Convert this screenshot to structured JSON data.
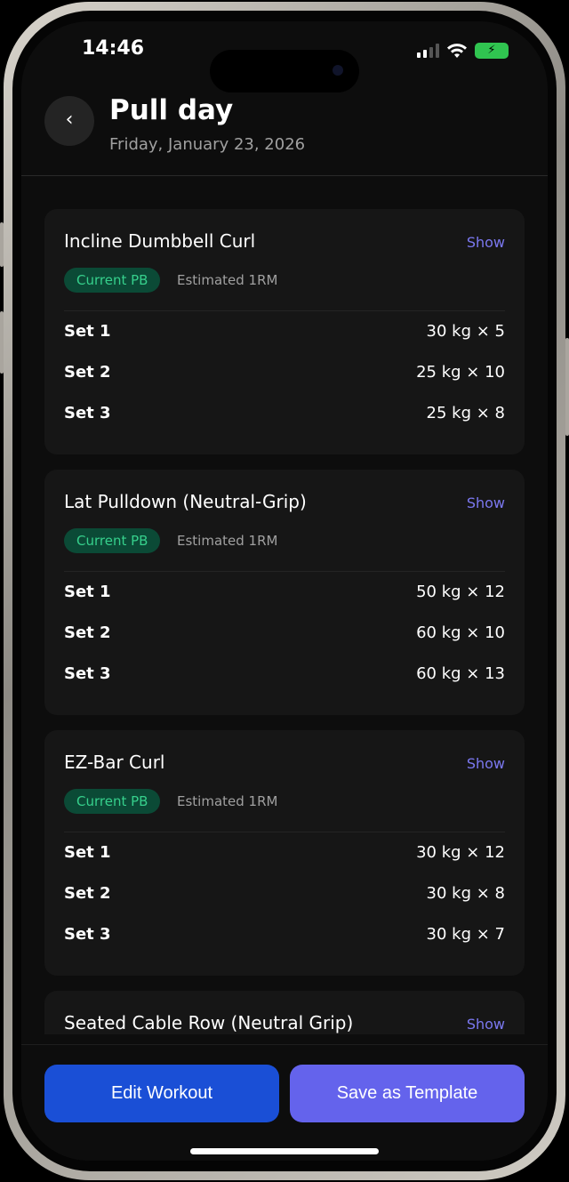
{
  "status_bar": {
    "time": "14:46",
    "signal_icon": "cellular-signal-icon",
    "wifi_icon": "wifi-icon",
    "battery_icon": "battery-charging-icon",
    "battery_color": "#30c450"
  },
  "header": {
    "back_icon": "chevron-left-icon",
    "back_glyph": "‹",
    "title": "Pull day",
    "date": "Friday, January 23, 2026"
  },
  "exercises": [
    {
      "name": "Incline Dumbbell Curl",
      "show_label": "Show",
      "badge": "Current PB",
      "badge_note": "Estimated 1RM",
      "sets": [
        {
          "label": "Set 1",
          "value": "30 kg × 5"
        },
        {
          "label": "Set 2",
          "value": "25 kg × 10"
        },
        {
          "label": "Set 3",
          "value": "25 kg × 8"
        }
      ]
    },
    {
      "name": "Lat Pulldown (Neutral-Grip)",
      "show_label": "Show",
      "badge": "Current PB",
      "badge_note": "Estimated 1RM",
      "sets": [
        {
          "label": "Set 1",
          "value": "50 kg × 12"
        },
        {
          "label": "Set 2",
          "value": "60 kg × 10"
        },
        {
          "label": "Set 3",
          "value": "60 kg × 13"
        }
      ]
    },
    {
      "name": "EZ-Bar Curl",
      "show_label": "Show",
      "badge": "Current PB",
      "badge_note": "Estimated 1RM",
      "sets": [
        {
          "label": "Set 1",
          "value": "30 kg × 12"
        },
        {
          "label": "Set 2",
          "value": "30 kg × 8"
        },
        {
          "label": "Set 3",
          "value": "30 kg × 7"
        }
      ]
    },
    {
      "name": "Seated Cable Row (Neutral Grip)",
      "show_label": "Show"
    }
  ],
  "actions": {
    "edit": "Edit Workout",
    "save": "Save as Template",
    "edit_color": "#1a4fd6",
    "save_color": "#6463ec"
  },
  "colors": {
    "accent": "#7b78f0",
    "pb_badge_bg": "#0b4a36",
    "pb_badge_text": "#36d08c"
  }
}
